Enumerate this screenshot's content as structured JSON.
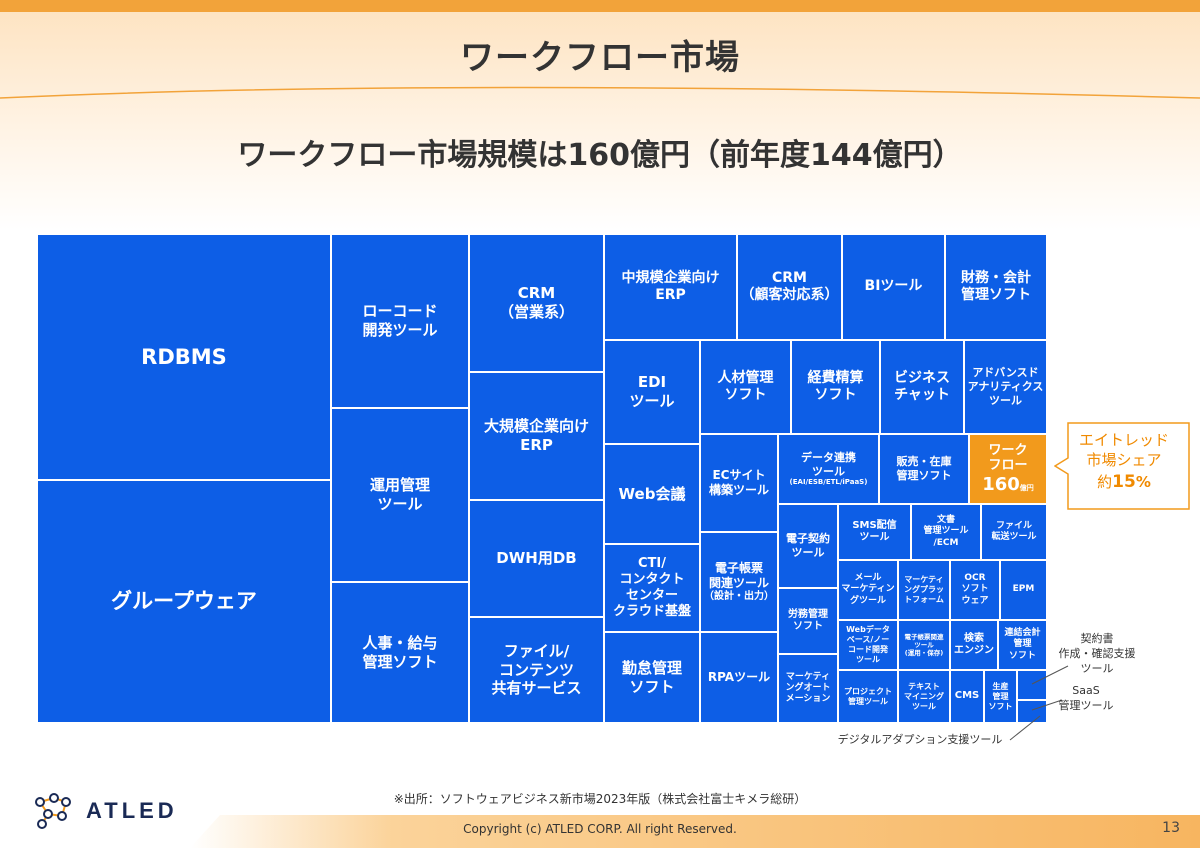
{
  "header": {
    "title": "ワークフロー市場"
  },
  "subtitle": "ワークフロー市場規模は160億円（前年度144億円）",
  "colors": {
    "blue": "#0d5ee6",
    "orange": "#f29a1c",
    "accent": "#f2a33a"
  },
  "cells": {
    "rdbms": "RDBMS",
    "groupware": "グループウェア",
    "lowcode": "ローコード\n開発ツール",
    "ops": "運用管理\nツール",
    "hr_payroll": "人事・給与\n管理ソフト",
    "crm_sales": "CRM\n（営業系）",
    "erp_large": "大規模企業向け\nERP",
    "dwh": "DWH用DB",
    "file_share": "ファイル/\nコンテンツ\n共有サービス",
    "erp_mid": "中規模企業向け\nERP",
    "crm_cs": "CRM\n（顧客対応系）",
    "bi": "BIツール",
    "finance": "財務・会計\n管理ソフト",
    "edi": "EDI\nツール",
    "hr_mgmt": "人材管理\nソフト",
    "expense": "経費精算\nソフト",
    "biz_chat": "ビジネス\nチャット",
    "advanced_analytics": "アドバンスド\nアナリティクス\nツール",
    "web_meeting": "Web会議",
    "ec_site": "ECサイト\n構築ツール",
    "data_integration": "データ連携\nツール",
    "data_integration_sub": "(EAI/ESB/ETL/iPaaS)",
    "sales_inventory": "販売・在庫\n管理ソフト",
    "workflow_label": "ワーク\nフロー",
    "workflow_value": "160",
    "workflow_unit": "億円",
    "cti": "CTI/\nコンタクト\nセンター\nクラウド基盤",
    "e_form": "電子帳票\n関連ツール",
    "e_form_sub": "（設計・出力）",
    "e_contract": "電子契約\nツール",
    "sms": "SMS配信\nツール",
    "doc_mgmt": "文書\n管理ツール\n/ECM",
    "file_transfer": "ファイル\n転送ツール",
    "email_marketing": "メール\nマーケティン\nグツール",
    "marketing_platform": "マーケティ\nングプラッ\nトフォーム",
    "ocr": "OCR\nソフト\nウェア",
    "epm": "EPM",
    "attendance": "勤怠管理\nソフト",
    "rpa": "RPAツール",
    "labor_mgmt": "労務管理\nソフト",
    "web_db": "Webデータ\nベース/ノー\nコード開発\nツール",
    "e_form_ops": "電子帳票関連\nツール\n(運用・保存)",
    "search": "検索\nエンジン",
    "consolidated": "連結会計\n管理\nソフト",
    "marketing_automation": "マーケティ\nングオート\nメーション",
    "project_mgmt": "プロジェクト\n管理ツール",
    "text_mining": "テキスト\nマイニング\nツール",
    "cms": "CMS",
    "production": "生産\n管理\nソフト"
  },
  "callout": {
    "line1": "エイトレッド",
    "line2": "市場シェア",
    "prefix": "約",
    "value": "15",
    "suffix": "%"
  },
  "notes": {
    "contract": "契約書\n作成・確認支援\nツール",
    "saas": "SaaS\n管理ツール",
    "digital_adoption": "デジタルアダプション支援ツール"
  },
  "source": "※出所：ソフトウェアビジネス新市場2023年版（株式会社富士キメラ総研）",
  "footer": {
    "copyright": "Copyright (c)  ATLED CORP. All right Reserved.",
    "page": "13",
    "logo_text": "ATLED"
  }
}
